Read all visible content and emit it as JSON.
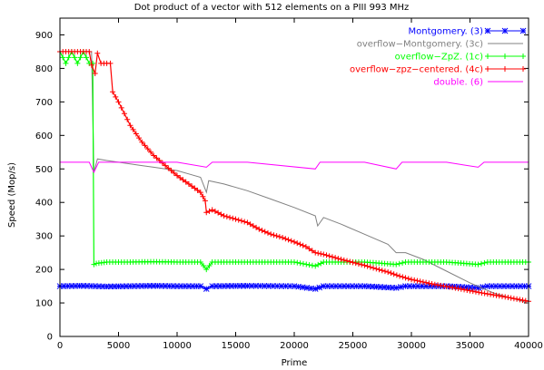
{
  "chart_data": {
    "type": "line",
    "title": "Dot product of a vector with 512 elements on a PIII 993 MHz",
    "xlabel": "Prime",
    "ylabel": "Speed (Mop/s)",
    "xlim": [
      0,
      40000
    ],
    "ylim": [
      0,
      950
    ],
    "xticks": [
      0,
      5000,
      10000,
      15000,
      20000,
      25000,
      30000,
      35000,
      40000
    ],
    "yticks": [
      0,
      100,
      200,
      300,
      400,
      500,
      600,
      700,
      800,
      900
    ],
    "grid": false,
    "legend_position": "top-right",
    "series": [
      {
        "name": "Montgomery. (3)",
        "color": "#0000ff",
        "marker": "asterisk",
        "points": [
          [
            0,
            150
          ],
          [
            2000,
            151
          ],
          [
            4000,
            149
          ],
          [
            6000,
            150
          ],
          [
            8000,
            151
          ],
          [
            10000,
            150
          ],
          [
            12000,
            150
          ],
          [
            12500,
            142
          ],
          [
            13000,
            150
          ],
          [
            16000,
            151
          ],
          [
            20000,
            150
          ],
          [
            21800,
            142
          ],
          [
            22500,
            150
          ],
          [
            26000,
            150
          ],
          [
            28700,
            145
          ],
          [
            29500,
            150
          ],
          [
            33000,
            150
          ],
          [
            35700,
            145
          ],
          [
            36500,
            150
          ],
          [
            40000,
            150
          ]
        ]
      },
      {
        "name": "overflow−Montgomery. (3c)",
        "color": "#808080",
        "marker": "none",
        "points": [
          [
            0,
            850
          ],
          [
            2700,
            850
          ],
          [
            2900,
            490
          ],
          [
            3200,
            530
          ],
          [
            4000,
            525
          ],
          [
            5000,
            520
          ],
          [
            6000,
            515
          ],
          [
            7000,
            510
          ],
          [
            8000,
            505
          ],
          [
            9000,
            500
          ],
          [
            10000,
            495
          ],
          [
            11000,
            485
          ],
          [
            12000,
            475
          ],
          [
            12500,
            430
          ],
          [
            12700,
            465
          ],
          [
            14000,
            455
          ],
          [
            16000,
            435
          ],
          [
            18000,
            410
          ],
          [
            20000,
            385
          ],
          [
            21800,
            360
          ],
          [
            22000,
            330
          ],
          [
            22500,
            355
          ],
          [
            24000,
            335
          ],
          [
            26000,
            305
          ],
          [
            28000,
            275
          ],
          [
            28700,
            250
          ],
          [
            29500,
            250
          ],
          [
            31000,
            230
          ],
          [
            33000,
            195
          ],
          [
            35000,
            160
          ],
          [
            37000,
            130
          ],
          [
            40000,
            100
          ]
        ]
      },
      {
        "name": "overflow−ZpZ. (1c)",
        "color": "#00ff00",
        "marker": "plus",
        "points": [
          [
            0,
            850
          ],
          [
            500,
            815
          ],
          [
            1000,
            850
          ],
          [
            1500,
            815
          ],
          [
            2000,
            850
          ],
          [
            2500,
            815
          ],
          [
            2800,
            815
          ],
          [
            2900,
            215
          ],
          [
            3100,
            218
          ],
          [
            4000,
            222
          ],
          [
            6000,
            222
          ],
          [
            8000,
            223
          ],
          [
            10000,
            222
          ],
          [
            12000,
            222
          ],
          [
            12500,
            200
          ],
          [
            13000,
            222
          ],
          [
            16000,
            222
          ],
          [
            20000,
            222
          ],
          [
            21800,
            210
          ],
          [
            22500,
            222
          ],
          [
            26000,
            222
          ],
          [
            28700,
            215
          ],
          [
            29500,
            222
          ],
          [
            33000,
            222
          ],
          [
            35700,
            215
          ],
          [
            36500,
            222
          ],
          [
            40000,
            222
          ]
        ]
      },
      {
        "name": "overflow−zpz−centered. (4c)",
        "color": "#ff0000",
        "marker": "plus",
        "points": [
          [
            0,
            850
          ],
          [
            1000,
            850
          ],
          [
            2000,
            850
          ],
          [
            2500,
            850
          ],
          [
            2700,
            810
          ],
          [
            3000,
            785
          ],
          [
            3200,
            845
          ],
          [
            3500,
            815
          ],
          [
            4000,
            815
          ],
          [
            4300,
            815
          ],
          [
            4500,
            730
          ],
          [
            5000,
            700
          ],
          [
            6000,
            630
          ],
          [
            7000,
            580
          ],
          [
            8000,
            540
          ],
          [
            9000,
            510
          ],
          [
            10000,
            480
          ],
          [
            11000,
            455
          ],
          [
            12000,
            430
          ],
          [
            12400,
            405
          ],
          [
            12500,
            370
          ],
          [
            13000,
            378
          ],
          [
            14000,
            360
          ],
          [
            15000,
            350
          ],
          [
            16000,
            340
          ],
          [
            17000,
            320
          ],
          [
            18000,
            305
          ],
          [
            19000,
            295
          ],
          [
            20000,
            282
          ],
          [
            21000,
            268
          ],
          [
            21800,
            250
          ],
          [
            22500,
            245
          ],
          [
            24000,
            230
          ],
          [
            26000,
            212
          ],
          [
            28000,
            192
          ],
          [
            29000,
            180
          ],
          [
            30000,
            170
          ],
          [
            32000,
            155
          ],
          [
            34000,
            143
          ],
          [
            36000,
            130
          ],
          [
            38000,
            118
          ],
          [
            40000,
            105
          ]
        ]
      },
      {
        "name": "double. (6)",
        "color": "#ff00ff",
        "marker": "none",
        "points": [
          [
            0,
            520
          ],
          [
            2500,
            520
          ],
          [
            2900,
            490
          ],
          [
            3300,
            520
          ],
          [
            6000,
            520
          ],
          [
            10000,
            520
          ],
          [
            12500,
            505
          ],
          [
            13000,
            520
          ],
          [
            16000,
            520
          ],
          [
            21800,
            500
          ],
          [
            22200,
            520
          ],
          [
            26000,
            520
          ],
          [
            28700,
            500
          ],
          [
            29200,
            520
          ],
          [
            33000,
            520
          ],
          [
            35700,
            505
          ],
          [
            36200,
            520
          ],
          [
            40000,
            520
          ]
        ]
      }
    ]
  }
}
